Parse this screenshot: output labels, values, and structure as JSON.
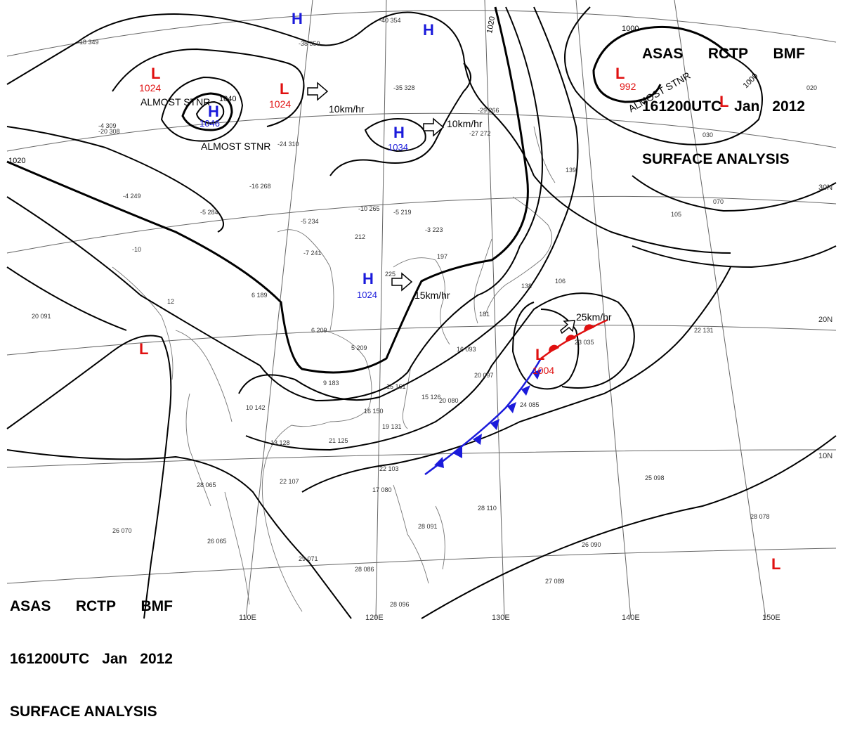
{
  "header": {
    "agency_line": [
      "ASAS",
      "RCTP",
      "BMF"
    ],
    "time_line": [
      "161200UTC",
      "Jan",
      "2012"
    ],
    "title_line": "SURFACE ANALYSIS"
  },
  "colors": {
    "high": "#1a1adb",
    "low": "#e01010",
    "cold_front": "#1a1adb",
    "warm_front": "#e01010",
    "isobar": "#000000",
    "grid": "#666666",
    "coast": "#777777"
  },
  "pressure_centers": [
    {
      "type": "H",
      "value": "",
      "note": ""
    },
    {
      "type": "H",
      "value": "",
      "note": ""
    },
    {
      "type": "L",
      "value": "1024",
      "note": "ALMOST STNR"
    },
    {
      "type": "H",
      "value": "1046",
      "note": "ALMOST STNR"
    },
    {
      "type": "L",
      "value": "1024",
      "note": ""
    },
    {
      "type": "H",
      "value": "1034",
      "note": ""
    },
    {
      "type": "L",
      "value": "992",
      "note": "ALMOST STNR"
    },
    {
      "type": "L",
      "value": "",
      "note": ""
    },
    {
      "type": "H",
      "value": "1024",
      "note": ""
    },
    {
      "type": "L",
      "value": "1004",
      "note": ""
    },
    {
      "type": "L",
      "value": "",
      "note": ""
    },
    {
      "type": "L",
      "value": "",
      "note": ""
    }
  ],
  "motion_labels": [
    "10km/hr",
    "10km/hr",
    "15km/hr",
    "25km/hr"
  ],
  "isobar_labels": [
    "1040",
    "1020",
    "1020",
    "1000",
    "1000"
  ],
  "lat_labels": [
    "30N",
    "20N",
    "10N"
  ],
  "lon_labels": [
    "110E",
    "120E",
    "130E",
    "140E",
    "150E"
  ],
  "station_samples": [
    "-40 354",
    "-38 350",
    "-35 328",
    "-29 266",
    "-27 272",
    "-24 310",
    "-20 308",
    "-16 268",
    "-10 265",
    "-5 219",
    "-3 223",
    "-7 241",
    "-5 234",
    "-18 349",
    "-4 309",
    "-4 249",
    "-5 284",
    "-10",
    "12",
    "6 189",
    "6 209",
    "5 209",
    "9 183",
    "15 161",
    "15 126",
    "16 093",
    "20 097",
    "20 080",
    "24 085",
    "28 110",
    "21 125",
    "19 131",
    "16 150",
    "10 142",
    "13 128",
    "22 107",
    "28 065",
    "26 070",
    "26 065",
    "29 071",
    "28 086",
    "28 096",
    "22 103",
    "17 080",
    "28 091",
    "26 090",
    "27 089",
    "25 098",
    "28 078",
    "22 131",
    "23 035",
    "139",
    "105",
    "070",
    "030",
    "020",
    "20 091",
    "197",
    "138",
    "106",
    "181",
    "212",
    "225"
  ]
}
